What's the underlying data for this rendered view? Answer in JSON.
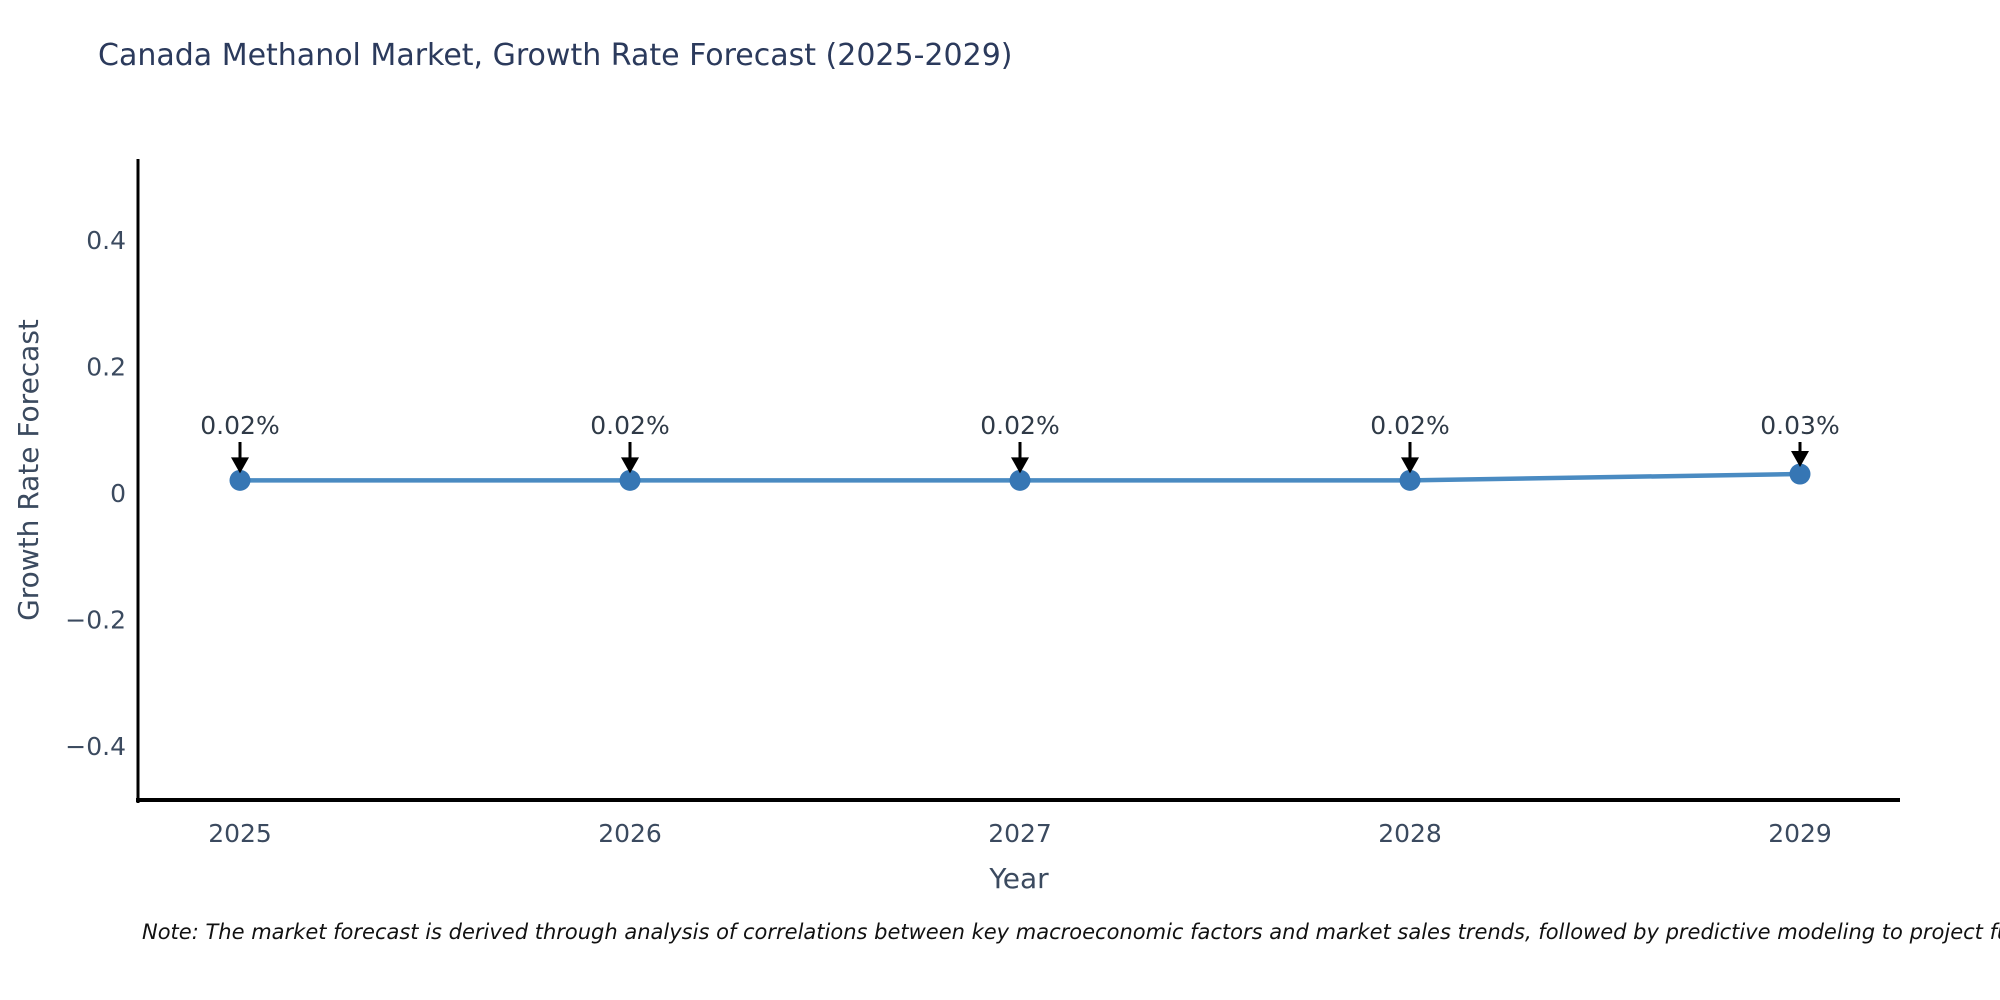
{
  "chart_data": {
    "type": "line",
    "title": "Canada Methanol Market, Growth Rate Forecast (2025-2029)",
    "xlabel": "Year",
    "ylabel": "Growth Rate Forecast",
    "x": [
      2025,
      2026,
      2027,
      2028,
      2029
    ],
    "series": [
      {
        "name": "Growth Rate Forecast",
        "values": [
          0.02,
          0.02,
          0.02,
          0.02,
          0.03
        ]
      }
    ],
    "point_labels": [
      "0.02%",
      "0.02%",
      "0.02%",
      "0.02%",
      "0.03%"
    ],
    "y_ticks": [
      0.4,
      0.2,
      0,
      -0.2,
      -0.4
    ],
    "y_tick_labels": [
      "0.4",
      "0.2",
      "0",
      "−0.2",
      "−0.4"
    ],
    "x_tick_labels": [
      "2025",
      "2026",
      "2027",
      "2028",
      "2029"
    ],
    "ylim": [
      -0.49,
      0.53
    ],
    "grid": false,
    "legend": "none",
    "line_color": "#4a8bc2",
    "marker_color": "#3676b4",
    "axis_color": "#000000",
    "tick_text_color": "#3b4a5f",
    "annotation_text_color": "#2f3a47",
    "annotation_arrow_color": "#000000"
  },
  "note": "Note: The market forecast is derived through analysis of correlations between key macroeconomic factors and market sales trends, followed by predictive modeling to project future sa"
}
